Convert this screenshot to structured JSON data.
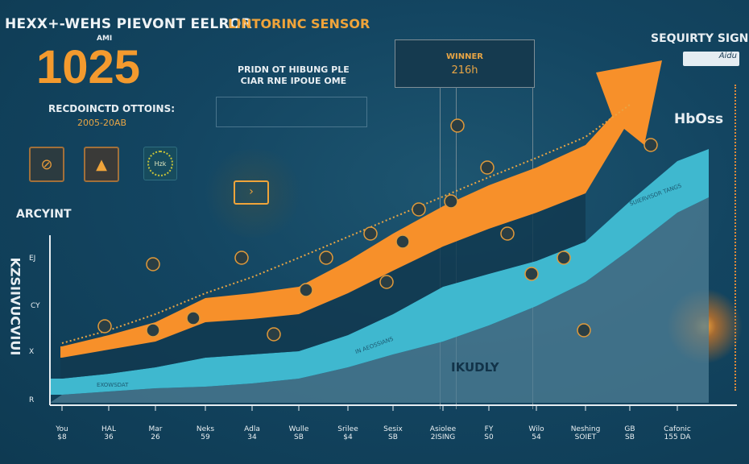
{
  "header": {
    "title": "HEXX+-WEHS PIEVONT EELROR",
    "subtitle": "AMI",
    "big_number": "1025",
    "recommended": "RECDOINCTD OTTOINS:",
    "years": "2005-20AB"
  },
  "monitor": {
    "title": "LINTORINC SENSOR",
    "desc_line1": "PRIDN OT HIBUNG PLE",
    "desc_line2": "CIAR RNE IPOUE OME"
  },
  "winner": {
    "label": "WINNER",
    "value": "216h"
  },
  "security": {
    "title": "SEQUIRTY SIGN",
    "logo_text": "Aidu",
    "side_label": "HbOss"
  },
  "icons": [
    "no-wrench-icon",
    "helmet-icon",
    "badge-icon",
    "monitor-icon"
  ],
  "badge_text": "Hzk",
  "colors": {
    "orange": "#f7902a",
    "teal": "#3fb8cf",
    "gray_area": "#4f7f95",
    "background": "#134561"
  },
  "chart_data": {
    "type": "area",
    "title": "ARCYINT",
    "ylabel": "KZSIIVUCVIUI",
    "ytick_labels": [
      "EJ",
      "CY",
      "X",
      "R"
    ],
    "annotation": "IKUDLY",
    "band_labels": [
      "EXOWSDAT",
      "IN AEOSSIANS",
      "SUIERVISOR TANGS"
    ],
    "categories": [
      "You",
      "HAL",
      "Mar",
      "Neks",
      "Adla",
      "Wulle",
      "Srilee",
      "Sesix",
      "Asiolee",
      "FY",
      "Wilo",
      "Neshing",
      "GB",
      "Cafonic"
    ],
    "category_sublabels": [
      "$8",
      "36",
      "26",
      "59",
      "34",
      "SB",
      "$4",
      "SB",
      "2ISING",
      "S0",
      "54",
      "SOIET",
      "SB",
      "155 DA"
    ],
    "ylim": [
      0,
      200
    ],
    "grid": false,
    "series": [
      {
        "name": "orange-top",
        "values": [
          35,
          42,
          50,
          65,
          68,
          72,
          88,
          105,
          122,
          135,
          146,
          160,
          null,
          null
        ]
      },
      {
        "name": "orange-bottom",
        "values": [
          28,
          33,
          38,
          50,
          52,
          55,
          68,
          82,
          97,
          108,
          118,
          130,
          null,
          null
        ]
      },
      {
        "name": "teal-top",
        "values": [
          15,
          18,
          22,
          28,
          30,
          32,
          42,
          55,
          72,
          80,
          88,
          100,
          125,
          150
        ]
      },
      {
        "name": "teal-bottom",
        "values": [
          5,
          7,
          9,
          10,
          12,
          15,
          22,
          30,
          38,
          48,
          60,
          75,
          95,
          118
        ]
      },
      {
        "name": "trend-dotted",
        "values": [
          37,
          45,
          55,
          68,
          78,
          90,
          103,
          115,
          128,
          140,
          152,
          165,
          185,
          null
        ]
      }
    ]
  }
}
